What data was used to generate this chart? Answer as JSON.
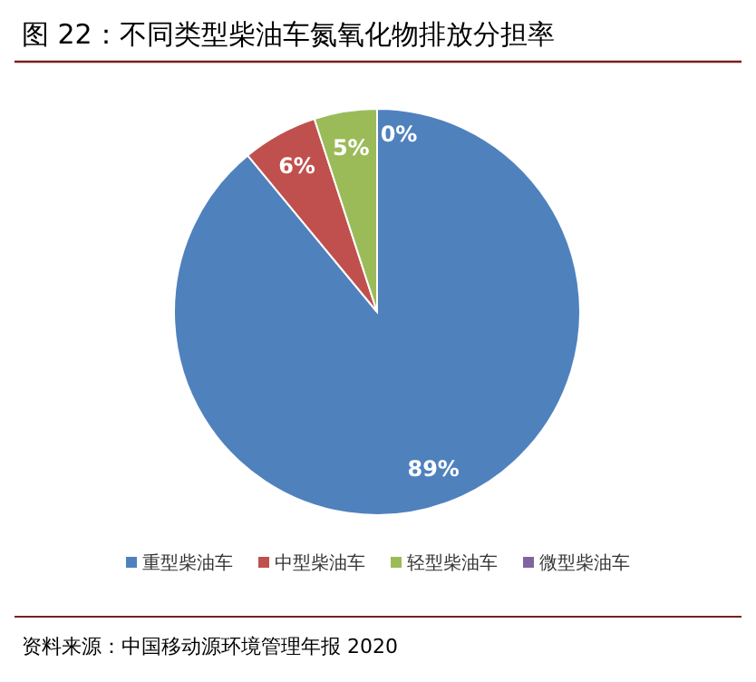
{
  "chart_data": {
    "type": "pie",
    "title": "图 22：不同类型柴油车氮氧化物排放分担率",
    "categories": [
      "重型柴油车",
      "中型柴油车",
      "轻型柴油车",
      "微型柴油车"
    ],
    "values": [
      89,
      6,
      5,
      0
    ],
    "value_labels": [
      "89%",
      "6%",
      "5%",
      "0%"
    ],
    "colors": [
      "#4f81bd",
      "#c0504d",
      "#9bbb59",
      "#8064a2"
    ],
    "legend": "bottom",
    "annotations": [
      "资料来源：中国移动源环境管理年报 2020"
    ]
  }
}
